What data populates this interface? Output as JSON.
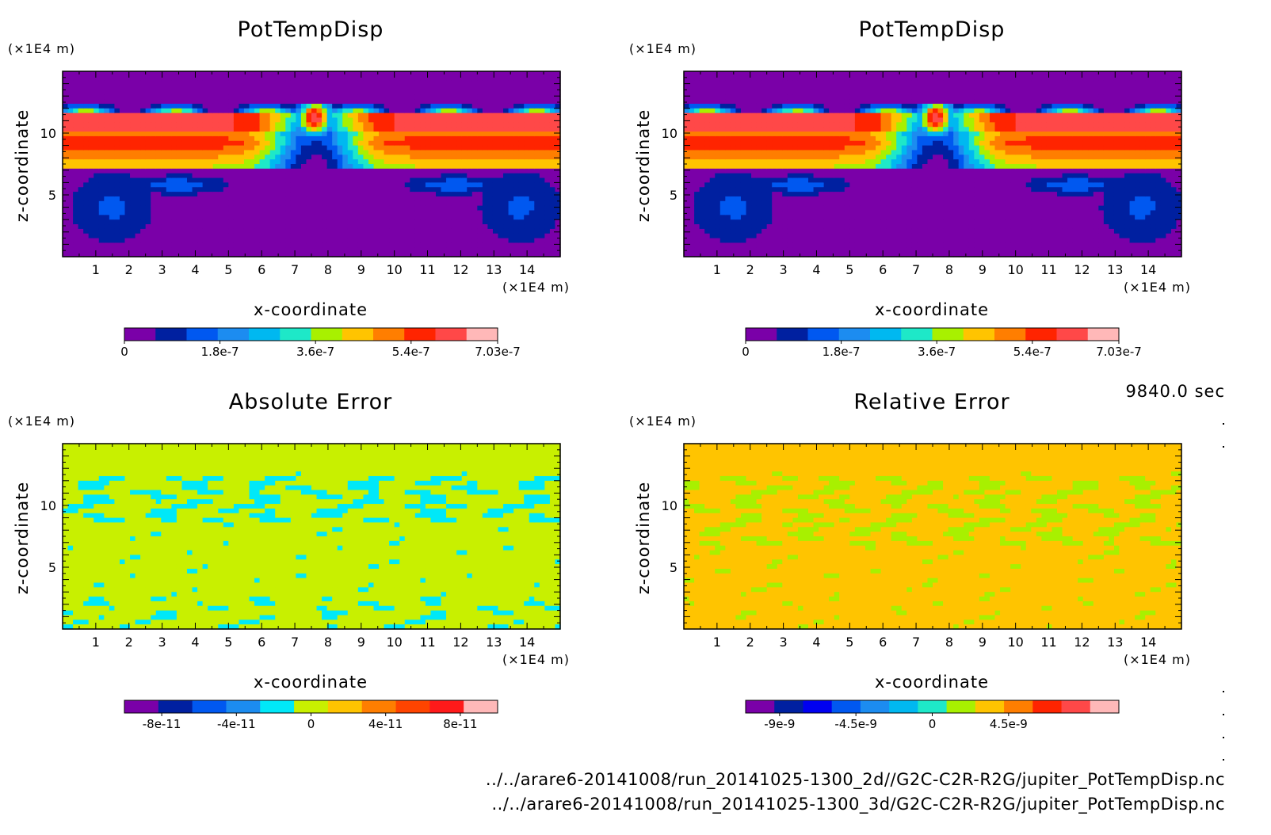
{
  "colors": {
    "pot": [
      "#7a00a8",
      "#0020a0",
      "#0058f0",
      "#1c8cf0",
      "#00b8f0",
      "#1ee8c8",
      "#a8f000",
      "#ffc400",
      "#ff7e00",
      "#ff2400",
      "#ff4848",
      "#ffb8b8"
    ],
    "abs": [
      "#7a00a8",
      "#0020a0",
      "#0058f0",
      "#1c8cf0",
      "#00e8f8",
      "#c8f000",
      "#ffc400",
      "#ff7e00",
      "#ff4400",
      "#ff1a1a",
      "#ffb8b8"
    ],
    "rel": [
      "#7a00a8",
      "#0020a0",
      "#0000f0",
      "#0058f0",
      "#1c8cf0",
      "#00b8f0",
      "#1ee8c8",
      "#a8f000",
      "#ffc400",
      "#ff7e00",
      "#ff2400",
      "#ff4848",
      "#ffb8b8"
    ]
  },
  "footer": {
    "time": "9840.0 sec",
    "path1": "../../arare6-20141008/run_20141025-1300_2d//G2C-C2R-R2G/jupiter_PotTempDisp.nc",
    "path2": "../../arare6-20141008/run_20141025-1300_3d/G2C-C2R-R2G/jupiter_PotTempDisp.nc"
  },
  "chart_data": [
    {
      "type": "heatmap",
      "id": "pot1",
      "title": "PotTempDisp",
      "xlabel": "x-coordinate",
      "ylabel": "z-coordinate",
      "x_unit": "(×1E4 m)",
      "y_unit": "(×1E4 m)",
      "xlim": [
        0,
        15
      ],
      "ylim": [
        0,
        15
      ],
      "x_ticks": [
        "1",
        "2",
        "3",
        "4",
        "5",
        "6",
        "7",
        "8",
        "9",
        "10",
        "11",
        "12",
        "13",
        "14"
      ],
      "y_ticks": [
        "5",
        "10"
      ],
      "palette": "pot",
      "field": "plume",
      "colorbar": {
        "levels": 12,
        "labels": [
          "0",
          "1.8e-7",
          "3.6e-7",
          "5.4e-7",
          "7.03e-7"
        ],
        "range": [
          0,
          7.03e-07
        ]
      }
    },
    {
      "type": "heatmap",
      "id": "pot2",
      "title": "PotTempDisp",
      "xlabel": "x-coordinate",
      "ylabel": "z-coordinate",
      "x_unit": "(×1E4 m)",
      "y_unit": "(×1E4 m)",
      "xlim": [
        0,
        15
      ],
      "ylim": [
        0,
        15
      ],
      "x_ticks": [
        "1",
        "2",
        "3",
        "4",
        "5",
        "6",
        "7",
        "8",
        "9",
        "10",
        "11",
        "12",
        "13",
        "14"
      ],
      "y_ticks": [
        "5",
        "10"
      ],
      "palette": "pot",
      "field": "plume",
      "colorbar": {
        "levels": 12,
        "labels": [
          "0",
          "1.8e-7",
          "3.6e-7",
          "5.4e-7",
          "7.03e-7"
        ],
        "range": [
          0,
          7.03e-07
        ]
      }
    },
    {
      "type": "heatmap",
      "id": "abs",
      "title": "Absolute Error",
      "xlabel": "x-coordinate",
      "ylabel": "z-coordinate",
      "x_unit": "(×1E4 m)",
      "y_unit": "(×1E4 m)",
      "xlim": [
        0,
        15
      ],
      "ylim": [
        0,
        15
      ],
      "x_ticks": [
        "1",
        "2",
        "3",
        "4",
        "5",
        "6",
        "7",
        "8",
        "9",
        "10",
        "11",
        "12",
        "13",
        "14"
      ],
      "y_ticks": [
        "5",
        "10"
      ],
      "palette": "abs",
      "field": "abs",
      "colorbar": {
        "levels": 11,
        "labels": [
          "-8e-11",
          "-4e-11",
          "0",
          "4e-11",
          "8e-11"
        ],
        "range": [
          -1e-10,
          1e-10
        ]
      }
    },
    {
      "type": "heatmap",
      "id": "rel",
      "title": "Relative Error",
      "xlabel": "x-coordinate",
      "ylabel": "z-coordinate",
      "x_unit": "(×1E4 m)",
      "y_unit": "(×1E4 m)",
      "xlim": [
        0,
        15
      ],
      "ylim": [
        0,
        15
      ],
      "x_ticks": [
        "1",
        "2",
        "3",
        "4",
        "5",
        "6",
        "7",
        "8",
        "9",
        "10",
        "11",
        "12",
        "13",
        "14"
      ],
      "y_ticks": [
        "5",
        "10"
      ],
      "palette": "rel",
      "field": "rel",
      "colorbar": {
        "levels": 13,
        "labels": [
          "-9e-9",
          "-4.5e-9",
          "0",
          "4.5e-9"
        ],
        "range": [
          -1.1e-08,
          1.1e-08
        ]
      }
    }
  ]
}
